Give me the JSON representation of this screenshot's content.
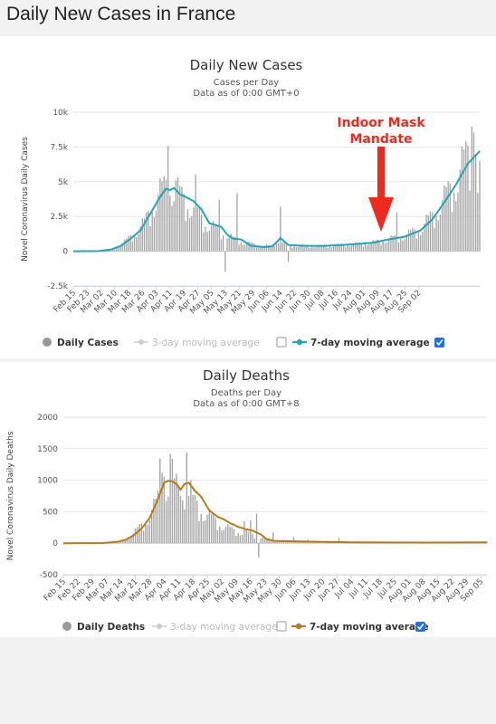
{
  "page": {
    "title": "Daily New Cases in France"
  },
  "chart_data": [
    {
      "type": "bar",
      "title": "Daily New Cases",
      "subtitle": "Cases per Day",
      "subtitle2": "Data as of 0:00 GMT+0",
      "ylabel": "Novel Coronavirus Daily Cases",
      "ylim": [
        -2500,
        10000
      ],
      "yticks": [
        -2500,
        0,
        2500,
        5000,
        7500,
        10000
      ],
      "ytick_labels": [
        "-2.5k",
        "0",
        "2.5k",
        "5k",
        "7.5k",
        "10k"
      ],
      "start_date": "2020-02-15",
      "end_date": "2020-09-08",
      "xtick_labels": [
        "Feb 15",
        "Feb 23",
        "Mar 02",
        "Mar 10",
        "Mar 18",
        "Mar 26",
        "Apr 03",
        "Apr 11",
        "Apr 19",
        "Apr 27",
        "May 05",
        "May 13",
        "May 21",
        "May 29",
        "Jun 06",
        "Jun 14",
        "Jun 22",
        "Jun 30",
        "Jul 08",
        "Jul 16",
        "Jul 24",
        "Aug 01",
        "Aug 09",
        "Aug 17",
        "Aug 25",
        "Sep 02"
      ],
      "annotation": {
        "line1": "Indoor Mask",
        "line2": "Mandate",
        "date": "2020-07-20"
      },
      "avg_color": "#21a4bd",
      "bar_color": "#a6a6a6",
      "series": [
        {
          "name": "Daily Cases",
          "knots": [
            [
              "2020-02-15",
              0
            ],
            [
              "2020-02-28",
              10
            ],
            [
              "2020-03-05",
              120
            ],
            [
              "2020-03-10",
              400
            ],
            [
              "2020-03-14",
              900
            ],
            [
              "2020-03-18",
              1400
            ],
            [
              "2020-03-22",
              2000
            ],
            [
              "2020-03-26",
              3200
            ],
            [
              "2020-03-30",
              4100
            ],
            [
              "2020-04-02",
              4600
            ],
            [
              "2020-04-06",
              4500
            ],
            [
              "2020-04-10",
              3800
            ],
            [
              "2020-04-14",
              3300
            ],
            [
              "2020-04-18",
              2700
            ],
            [
              "2020-04-22",
              2000
            ],
            [
              "2020-04-26",
              1700
            ],
            [
              "2020-05-01",
              1300
            ],
            [
              "2020-05-06",
              900
            ],
            [
              "2020-05-12",
              600
            ],
            [
              "2020-05-18",
              450
            ],
            [
              "2020-05-25",
              350
            ],
            [
              "2020-05-29",
              800
            ],
            [
              "2020-06-02",
              450
            ],
            [
              "2020-06-10",
              400
            ],
            [
              "2020-06-20",
              380
            ],
            [
              "2020-06-30",
              450
            ],
            [
              "2020-07-08",
              520
            ],
            [
              "2020-07-16",
              620
            ],
            [
              "2020-07-24",
              850
            ],
            [
              "2020-08-01",
              1100
            ],
            [
              "2020-08-09",
              1600
            ],
            [
              "2020-08-15",
              2500
            ],
            [
              "2020-08-21",
              3700
            ],
            [
              "2020-08-27",
              5000
            ],
            [
              "2020-09-02",
              6800
            ],
            [
              "2020-09-08",
              8200
            ]
          ],
          "spikes": [
            [
              "2020-04-03",
              7578
            ],
            [
              "2020-04-07",
              5100
            ],
            [
              "2020-04-17",
              5497
            ],
            [
              "2020-04-29",
              3700
            ],
            [
              "2020-05-02",
              -1480
            ],
            [
              "2020-05-08",
              4183
            ],
            [
              "2020-05-30",
              3200
            ],
            [
              "2020-06-03",
              -770
            ],
            [
              "2020-07-28",
              2800
            ],
            [
              "2020-09-04",
              8975
            ],
            [
              "2020-09-05",
              8550
            ],
            [
              "2020-09-06",
              7000
            ],
            [
              "2020-09-07",
              4200
            ],
            [
              "2020-09-08",
              6500
            ]
          ]
        },
        {
          "name": "3-day moving average",
          "enabled": false
        },
        {
          "name": "7-day moving average",
          "enabled": true,
          "points": [
            [
              "2020-02-15",
              0
            ],
            [
              "2020-02-28",
              10
            ],
            [
              "2020-03-05",
              120
            ],
            [
              "2020-03-10",
              380
            ],
            [
              "2020-03-15",
              900
            ],
            [
              "2020-03-20",
              1500
            ],
            [
              "2020-03-25",
              2700
            ],
            [
              "2020-03-30",
              3900
            ],
            [
              "2020-04-02",
              4500
            ],
            [
              "2020-04-04",
              4400
            ],
            [
              "2020-04-06",
              4550
            ],
            [
              "2020-04-09",
              4100
            ],
            [
              "2020-04-12",
              3900
            ],
            [
              "2020-04-16",
              3600
            ],
            [
              "2020-04-20",
              3000
            ],
            [
              "2020-04-24",
              2000
            ],
            [
              "2020-04-27",
              1900
            ],
            [
              "2020-04-30",
              1750
            ],
            [
              "2020-05-03",
              1200
            ],
            [
              "2020-05-06",
              900
            ],
            [
              "2020-05-10",
              850
            ],
            [
              "2020-05-15",
              400
            ],
            [
              "2020-05-22",
              300
            ],
            [
              "2020-05-26",
              350
            ],
            [
              "2020-05-30",
              950
            ],
            [
              "2020-06-03",
              450
            ],
            [
              "2020-06-10",
              400
            ],
            [
              "2020-06-20",
              380
            ],
            [
              "2020-06-30",
              440
            ],
            [
              "2020-07-08",
              520
            ],
            [
              "2020-07-16",
              620
            ],
            [
              "2020-07-24",
              850
            ],
            [
              "2020-08-01",
              1050
            ],
            [
              "2020-08-09",
              1500
            ],
            [
              "2020-08-15",
              2300
            ],
            [
              "2020-08-21",
              3500
            ],
            [
              "2020-08-27",
              4800
            ],
            [
              "2020-09-02",
              6300
            ],
            [
              "2020-09-08",
              7200
            ]
          ]
        }
      ]
    },
    {
      "type": "bar",
      "title": "Daily Deaths",
      "subtitle": "Deaths per Day",
      "subtitle2": "Data as of 0:00 GMT+8",
      "ylabel": "Novel Coronavirus Daily Deaths",
      "ylim": [
        -500,
        2000
      ],
      "yticks": [
        -500,
        0,
        500,
        1000,
        1500,
        2000
      ],
      "ytick_labels": [
        "-500",
        "0",
        "500",
        "1000",
        "1500",
        "2000"
      ],
      "start_date": "2020-02-15",
      "end_date": "2020-09-08",
      "xtick_labels": [
        "Feb 15",
        "Feb 22",
        "Feb 29",
        "Mar 07",
        "Mar 14",
        "Mar 21",
        "Mar 28",
        "Apr 04",
        "Apr 11",
        "Apr 18",
        "Apr 25",
        "May 02",
        "May 09",
        "May 16",
        "May 23",
        "May 30",
        "Jun 06",
        "Jun 13",
        "Jun 20",
        "Jun 27",
        "Jul 04",
        "Jul 11",
        "Jul 18",
        "Jul 25",
        "Aug 01",
        "Aug 08",
        "Aug 15",
        "Aug 22",
        "Aug 29",
        "Sep 05"
      ],
      "avg_color": "#b97a1a",
      "bar_color": "#a6a6a6",
      "series": [
        {
          "name": "Daily Deaths",
          "knots": [
            [
              "2020-02-15",
              0
            ],
            [
              "2020-03-05",
              3
            ],
            [
              "2020-03-12",
              15
            ],
            [
              "2020-03-16",
              60
            ],
            [
              "2020-03-20",
              150
            ],
            [
              "2020-03-24",
              280
            ],
            [
              "2020-03-28",
              450
            ],
            [
              "2020-03-31",
              600
            ],
            [
              "2020-04-04",
              950
            ],
            [
              "2020-04-08",
              900
            ],
            [
              "2020-04-12",
              800
            ],
            [
              "2020-04-16",
              700
            ],
            [
              "2020-04-20",
              600
            ],
            [
              "2020-04-24",
              450
            ],
            [
              "2020-04-28",
              380
            ],
            [
              "2020-05-02",
              280
            ],
            [
              "2020-05-06",
              220
            ],
            [
              "2020-05-10",
              180
            ],
            [
              "2020-05-14",
              160
            ],
            [
              "2020-05-18",
              120
            ],
            [
              "2020-05-24",
              70
            ],
            [
              "2020-05-30",
              40
            ],
            [
              "2020-06-10",
              30
            ],
            [
              "2020-06-25",
              15
            ],
            [
              "2020-07-15",
              12
            ],
            [
              "2020-08-10",
              10
            ],
            [
              "2020-09-08",
              15
            ]
          ],
          "spikes": [
            [
              "2020-04-02",
              1340
            ],
            [
              "2020-04-03",
              1120
            ],
            [
              "2020-04-04",
              1055
            ],
            [
              "2020-04-07",
              1417
            ],
            [
              "2020-04-08",
              1340
            ],
            [
              "2020-04-10",
              1100
            ],
            [
              "2020-04-12",
              750
            ],
            [
              "2020-04-15",
              1438
            ],
            [
              "2020-04-16",
              750
            ],
            [
              "2020-04-17",
              1000
            ],
            [
              "2020-05-13",
              350
            ],
            [
              "2020-05-16",
              360
            ],
            [
              "2020-05-19",
              470
            ],
            [
              "2020-05-20",
              -230
            ],
            [
              "2020-05-27",
              170
            ],
            [
              "2020-06-06",
              100
            ],
            [
              "2020-06-13",
              60
            ],
            [
              "2020-06-28",
              80
            ]
          ]
        },
        {
          "name": "3-day moving average",
          "enabled": false
        },
        {
          "name": "7-day moving average",
          "enabled": true,
          "points": [
            [
              "2020-02-15",
              0
            ],
            [
              "2020-03-05",
              3
            ],
            [
              "2020-03-12",
              20
            ],
            [
              "2020-03-16",
              50
            ],
            [
              "2020-03-20",
              120
            ],
            [
              "2020-03-24",
              230
            ],
            [
              "2020-03-28",
              400
            ],
            [
              "2020-04-01",
              700
            ],
            [
              "2020-04-04",
              960
            ],
            [
              "2020-04-06",
              990
            ],
            [
              "2020-04-08",
              980
            ],
            [
              "2020-04-10",
              940
            ],
            [
              "2020-04-12",
              850
            ],
            [
              "2020-04-14",
              940
            ],
            [
              "2020-04-16",
              960
            ],
            [
              "2020-04-19",
              830
            ],
            [
              "2020-04-22",
              740
            ],
            [
              "2020-04-26",
              520
            ],
            [
              "2020-04-30",
              420
            ],
            [
              "2020-05-03",
              380
            ],
            [
              "2020-05-06",
              320
            ],
            [
              "2020-05-10",
              260
            ],
            [
              "2020-05-14",
              220
            ],
            [
              "2020-05-17",
              200
            ],
            [
              "2020-05-21",
              140
            ],
            [
              "2020-05-24",
              60
            ],
            [
              "2020-05-28",
              35
            ],
            [
              "2020-06-06",
              30
            ],
            [
              "2020-06-20",
              20
            ],
            [
              "2020-07-04",
              15
            ],
            [
              "2020-07-20",
              12
            ],
            [
              "2020-08-10",
              10
            ],
            [
              "2020-09-08",
              15
            ]
          ]
        }
      ]
    }
  ]
}
